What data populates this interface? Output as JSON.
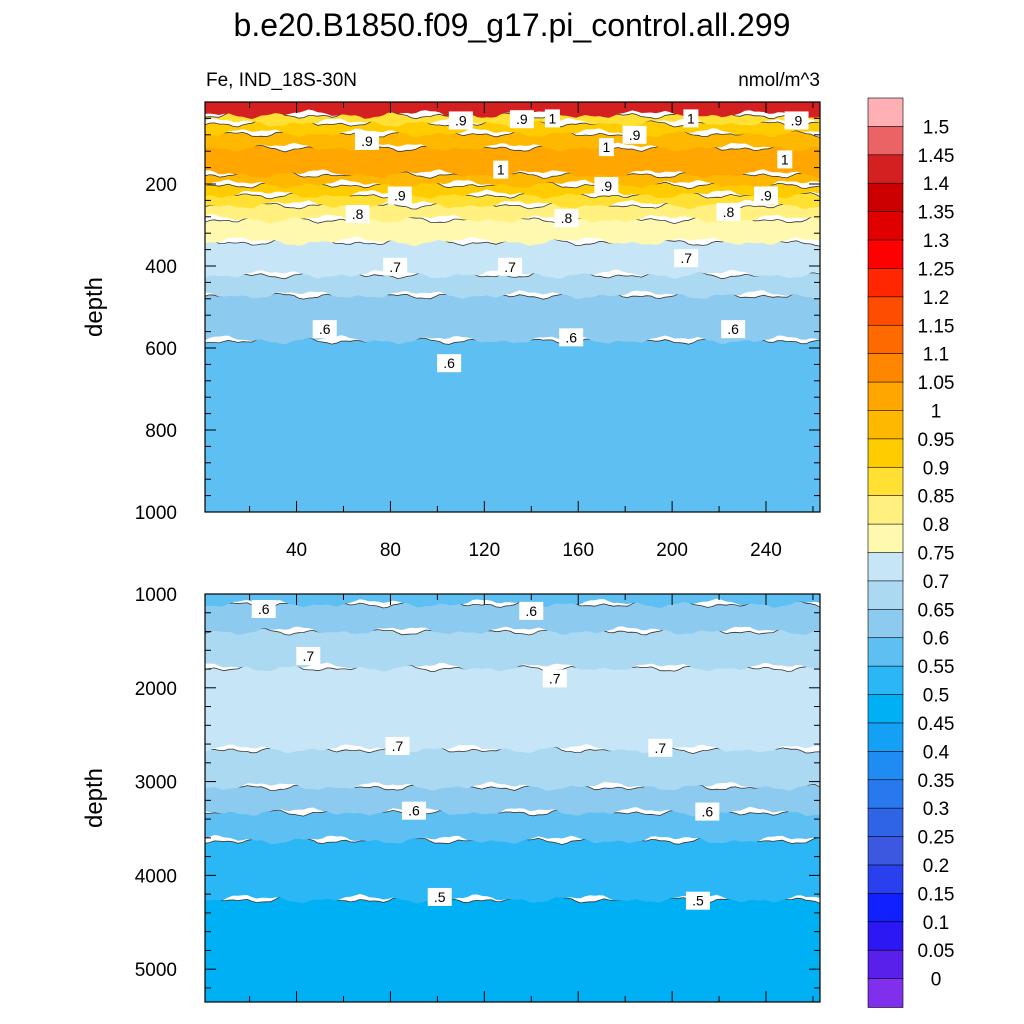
{
  "title": "b.e20.B1850.f09_g17.pi_control.all.299",
  "left_string": "Fe, IND_18S-30N",
  "right_string": "nmol/m^3",
  "colorbar": {
    "labels": [
      "1.5",
      "1.45",
      "1.4",
      "1.35",
      "1.3",
      "1.25",
      "1.2",
      "1.15",
      "1.1",
      "1.05",
      "1",
      "0.95",
      "0.9",
      "0.85",
      "0.8",
      "0.75",
      "0.7",
      "0.65",
      "0.6",
      "0.55",
      "0.5",
      "0.45",
      "0.4",
      "0.35",
      "0.3",
      "0.25",
      "0.2",
      "0.15",
      "0.1",
      "0.05",
      "0"
    ],
    "colors": [
      "#ffb0b4",
      "#ea6466",
      "#d42020",
      "#cc0000",
      "#e00000",
      "#ff0000",
      "#ff2600",
      "#ff4d00",
      "#ff6a00",
      "#ff8700",
      "#ffa600",
      "#ffb800",
      "#ffcc00",
      "#ffe033",
      "#fff080",
      "#fff9b0",
      "#c6e6f7",
      "#acd9f2",
      "#8ccaf0",
      "#5ec0f2",
      "#2bb6f5",
      "#00b0f5",
      "#14a0f5",
      "#1e8cf2",
      "#2878ee",
      "#3064e6",
      "#3c58e0",
      "#2840ee",
      "#1020ff",
      "#2c18f2",
      "#5820ea",
      "#8030ec"
    ]
  },
  "chart_data": [
    {
      "type": "heatmap",
      "panel": "upper",
      "title": "b.e20.B1850.f09_g17.pi_control.all.299",
      "variable": "Fe, IND_18S-30N",
      "units": "nmol/m^3",
      "ylabel": "depth",
      "xlabel": "",
      "xlim": [
        1,
        263
      ],
      "ylim": [
        1000,
        0
      ],
      "xticks": [
        40,
        80,
        120,
        160,
        200,
        240
      ],
      "yticks": [
        200,
        400,
        600,
        800,
        1000
      ],
      "contour_labels": [
        {
          "text": ".9",
          "x": 110,
          "y": 45
        },
        {
          "text": ".9",
          "x": 136,
          "y": 42
        },
        {
          "text": "1",
          "x": 149,
          "y": 40
        },
        {
          "text": "1",
          "x": 208,
          "y": 40
        },
        {
          "text": ".9",
          "x": 253,
          "y": 45
        },
        {
          "text": ".9",
          "x": 70,
          "y": 95
        },
        {
          "text": ".9",
          "x": 184,
          "y": 80
        },
        {
          "text": "1",
          "x": 172,
          "y": 110
        },
        {
          "text": "1",
          "x": 127,
          "y": 165
        },
        {
          "text": "1",
          "x": 248,
          "y": 140
        },
        {
          "text": ".9",
          "x": 84,
          "y": 228
        },
        {
          "text": ".9",
          "x": 172,
          "y": 205
        },
        {
          "text": ".9",
          "x": 240,
          "y": 228
        },
        {
          "text": ".8",
          "x": 66,
          "y": 273
        },
        {
          "text": ".8",
          "x": 155,
          "y": 283
        },
        {
          "text": ".8",
          "x": 224,
          "y": 268
        },
        {
          "text": ".7",
          "x": 82,
          "y": 402
        },
        {
          "text": ".7",
          "x": 131,
          "y": 402
        },
        {
          "text": ".7",
          "x": 206,
          "y": 381
        },
        {
          "text": ".6",
          "x": 52,
          "y": 554
        },
        {
          "text": ".6",
          "x": 157,
          "y": 574
        },
        {
          "text": ".6",
          "x": 226,
          "y": 554
        },
        {
          "text": ".6",
          "x": 105,
          "y": 637
        }
      ],
      "layers": [
        {
          "value_range": "0.55-0.6",
          "depth_from": 580,
          "depth_to": 1000
        },
        {
          "value_range": "0.6-0.65",
          "depth_from": 470,
          "depth_to": 580
        },
        {
          "value_range": "0.65-0.7",
          "depth_from": 420,
          "depth_to": 470
        },
        {
          "value_range": "0.7-0.75",
          "depth_from": 340,
          "depth_to": 420
        },
        {
          "value_range": "0.75-0.8",
          "depth_from": 285,
          "depth_to": 340
        },
        {
          "value_range": "0.8-0.85",
          "depth_from": 250,
          "depth_to": 285
        },
        {
          "value_range": "0.85-0.9",
          "depth_from": 225,
          "depth_to": 250
        },
        {
          "value_range": "0.9-0.95",
          "depth_from": 200,
          "depth_to": 225
        },
        {
          "value_range": "0.95-1.0",
          "depth_from": 175,
          "depth_to": 200
        },
        {
          "value_range": "1.0-1.05",
          "depth_from": 110,
          "depth_to": 175
        },
        {
          "value_range": "0.95-1.0",
          "depth_from": 75,
          "depth_to": 110
        },
        {
          "value_range": "0.9-0.95",
          "depth_from": 50,
          "depth_to": 75
        },
        {
          "value_range": "0.85-0.9",
          "depth_from": 30,
          "depth_to": 50
        },
        {
          "value_range": "1.35-1.5",
          "depth_from": 0,
          "depth_to": 30
        }
      ]
    },
    {
      "type": "heatmap",
      "panel": "lower",
      "ylabel": "depth",
      "xlabel": "",
      "xlim": [
        1,
        263
      ],
      "ylim": [
        5350,
        1000
      ],
      "xticks": [
        40,
        80,
        120,
        160,
        200,
        240
      ],
      "yticks": [
        1000,
        2000,
        3000,
        4000,
        5000
      ],
      "contour_labels": [
        {
          "text": ".6",
          "x": 26,
          "y": 1160
        },
        {
          "text": ".6",
          "x": 140,
          "y": 1180
        },
        {
          "text": ".7",
          "x": 45,
          "y": 1660
        },
        {
          "text": ".7",
          "x": 150,
          "y": 1900
        },
        {
          "text": ".7",
          "x": 83,
          "y": 2620
        },
        {
          "text": ".7",
          "x": 195,
          "y": 2640
        },
        {
          "text": ".6",
          "x": 90,
          "y": 3310
        },
        {
          "text": ".6",
          "x": 215,
          "y": 3320
        },
        {
          "text": ".5",
          "x": 101,
          "y": 4230
        },
        {
          "text": ".5",
          "x": 211,
          "y": 4270
        }
      ],
      "layers": [
        {
          "value_range": "0.45-0.5",
          "depth_from": 4250,
          "depth_to": 5350
        },
        {
          "value_range": "0.5-0.55",
          "depth_from": 3620,
          "depth_to": 4250
        },
        {
          "value_range": "0.55-0.6",
          "depth_from": 3320,
          "depth_to": 3620
        },
        {
          "value_range": "0.6-0.65",
          "depth_from": 3050,
          "depth_to": 3320
        },
        {
          "value_range": "0.65-0.7",
          "depth_from": 2650,
          "depth_to": 3050
        },
        {
          "value_range": "0.7-0.75",
          "depth_from": 1780,
          "depth_to": 2650
        },
        {
          "value_range": "0.65-0.7",
          "depth_from": 1390,
          "depth_to": 1780
        },
        {
          "value_range": "0.6-0.65",
          "depth_from": 1100,
          "depth_to": 1390
        },
        {
          "value_range": "0.55-0.6",
          "depth_from": 1000,
          "depth_to": 1100
        }
      ]
    }
  ]
}
